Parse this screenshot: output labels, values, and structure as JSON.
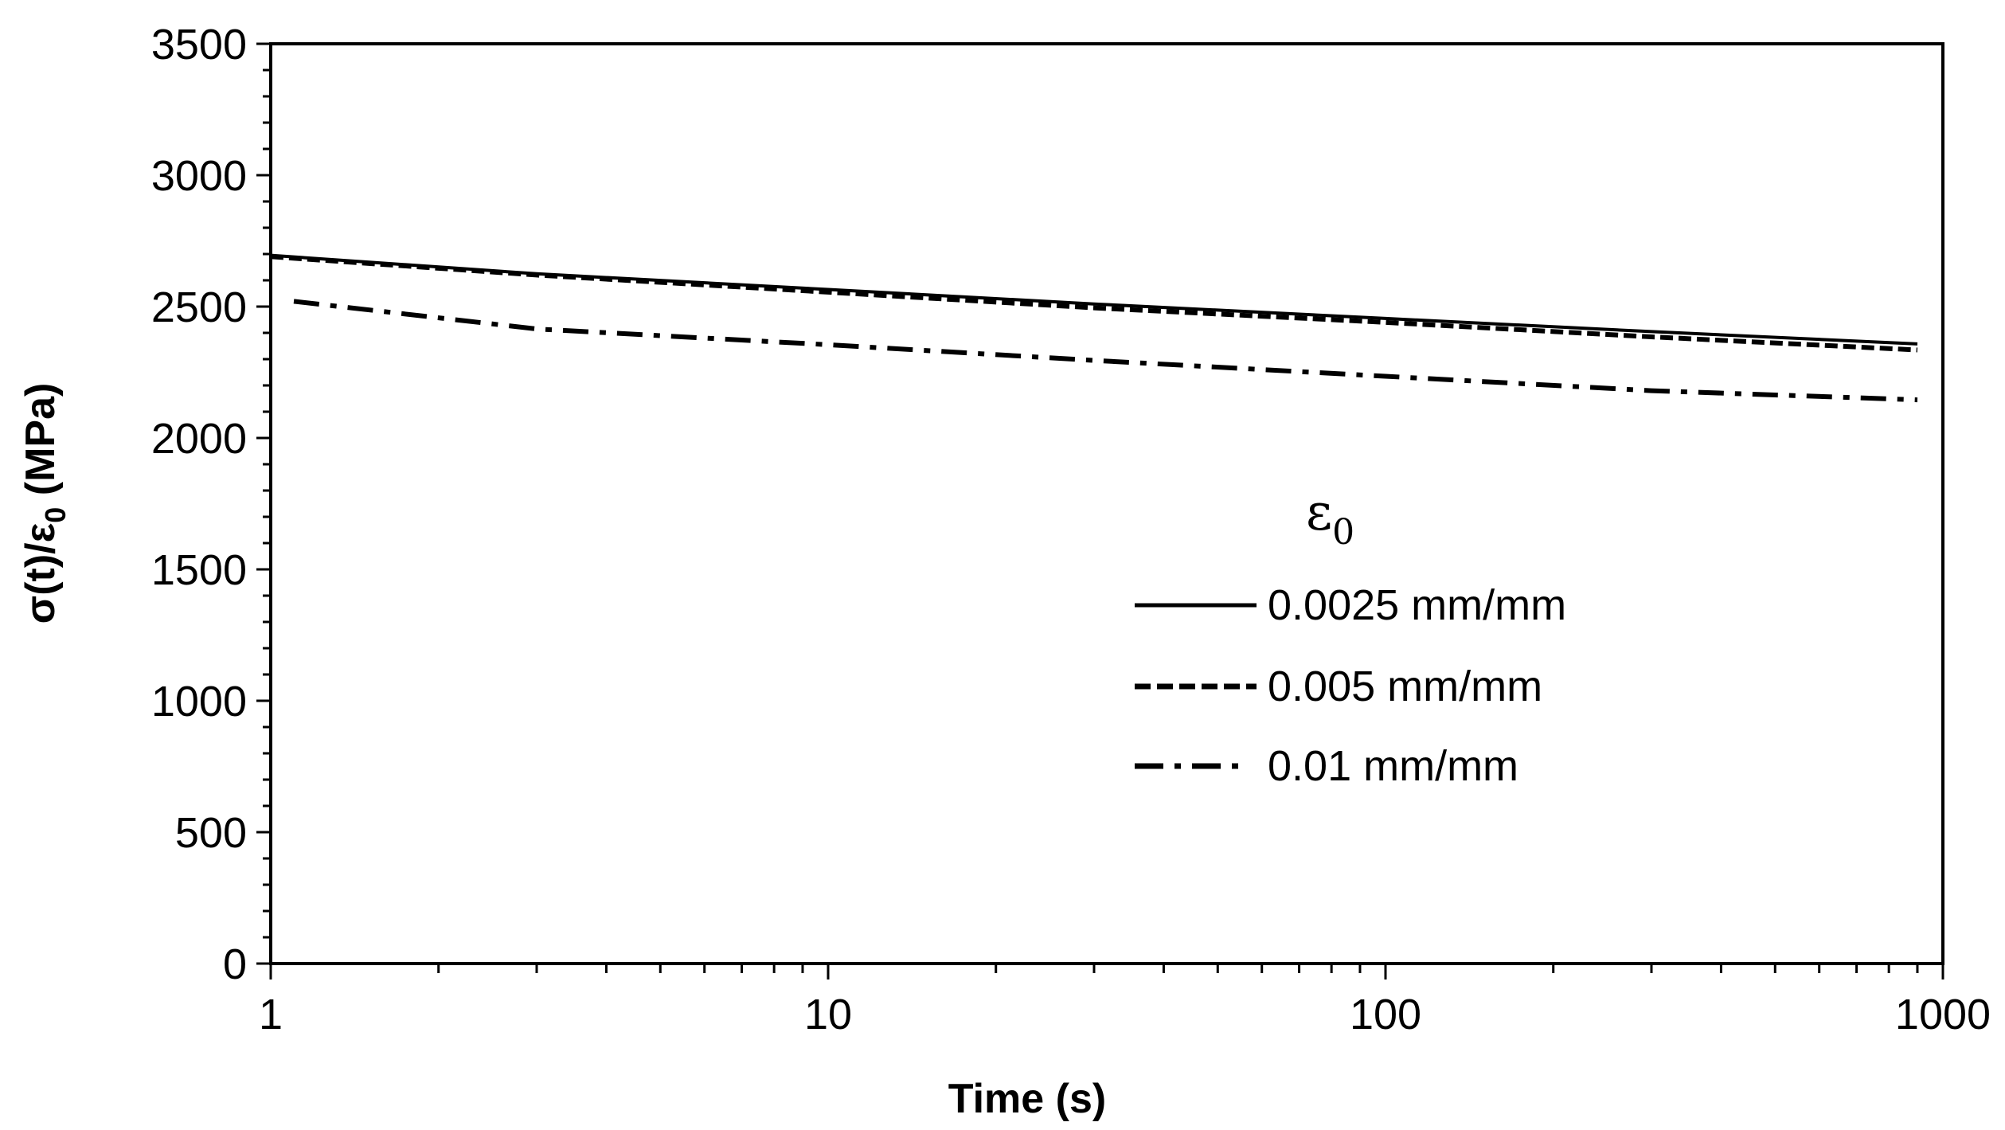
{
  "chart_data": {
    "type": "line",
    "title": "",
    "xlabel": "Time (s)",
    "ylabel": {
      "main": "σ(t)/ε",
      "sub": "0",
      "unit": "(MPa)"
    },
    "xscale": "log",
    "xlim": [
      1,
      1000
    ],
    "ylim": [
      0,
      3500
    ],
    "x_ticks": [
      1,
      10,
      100,
      1000
    ],
    "x_tick_labels": [
      "1",
      "10",
      "100",
      "1000"
    ],
    "y_ticks": [
      0,
      500,
      1000,
      1500,
      2000,
      2500,
      3000,
      3500
    ],
    "y_tick_labels": [
      "0",
      "500",
      "1000",
      "1500",
      "2000",
      "2500",
      "3000",
      "3500"
    ],
    "grid": false,
    "legend": {
      "position": "center-right",
      "title_main": "ε",
      "title_sub": "0"
    },
    "series": [
      {
        "name": "0.0025 mm/mm",
        "style": "solid",
        "x": [
          1,
          3,
          10,
          30,
          100,
          300,
          900
        ],
        "values": [
          2695,
          2625,
          2565,
          2510,
          2455,
          2405,
          2358
        ]
      },
      {
        "name": "0.005 mm/mm",
        "style": "dashed",
        "x": [
          1,
          3,
          10,
          30,
          100,
          300,
          900
        ],
        "values": [
          2690,
          2620,
          2555,
          2495,
          2440,
          2385,
          2335
        ]
      },
      {
        "name": "0.01 mm/mm",
        "style": "dashdot",
        "x": [
          1.1,
          3,
          10,
          30,
          100,
          300,
          900
        ],
        "values": [
          2520,
          2415,
          2355,
          2295,
          2235,
          2180,
          2145
        ]
      }
    ]
  }
}
